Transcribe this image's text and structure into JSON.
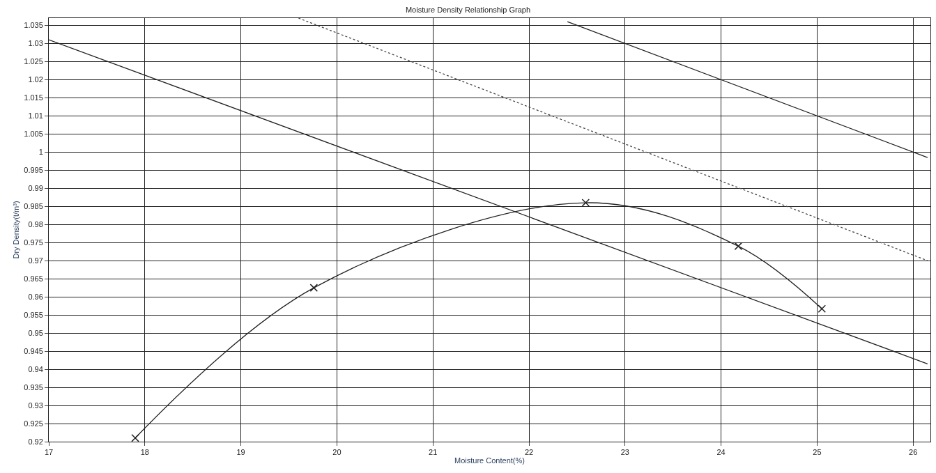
{
  "chart_data": {
    "type": "line",
    "title": "Moisture Density Relationship Graph",
    "xlabel": "Moisture Content(%)",
    "ylabel": "Dry Density(t/m³)",
    "xlim": [
      17,
      26.18
    ],
    "xticks": [
      17,
      18,
      19,
      20,
      21,
      22,
      23,
      24,
      25,
      26
    ],
    "ylim": [
      0.92,
      1.037
    ],
    "yticks": [
      0.92,
      0.925,
      0.93,
      0.935,
      0.94,
      0.945,
      0.95,
      0.955,
      0.96,
      0.965,
      0.97,
      0.975,
      0.98,
      0.985,
      0.99,
      0.995,
      1,
      1.005,
      1.01,
      1.015,
      1.02,
      1.025,
      1.03,
      1.035
    ],
    "grid": true,
    "series": [
      {
        "color": "#222222",
        "x": [
          17.9,
          19.76,
          22.59,
          24.18,
          25.05
        ],
        "values": [
          0.921,
          0.9625,
          0.986,
          0.974,
          0.9567
        ],
        "marker": "cross",
        "line_style": "solid"
      },
      {
        "color": "#222222",
        "x": [
          17,
          26.15
        ],
        "values": [
          1.031,
          0.9415
        ],
        "marker": "none",
        "line_style": "solid"
      },
      {
        "color": "#444444",
        "x": [
          19.6,
          26.15
        ],
        "values": [
          1.037,
          0.97
        ],
        "marker": "none",
        "line_style": "dotted"
      },
      {
        "color": "#222222",
        "x": [
          22.4,
          26.15
        ],
        "values": [
          1.036,
          0.9985
        ],
        "marker": "none",
        "line_style": "solid"
      }
    ]
  }
}
